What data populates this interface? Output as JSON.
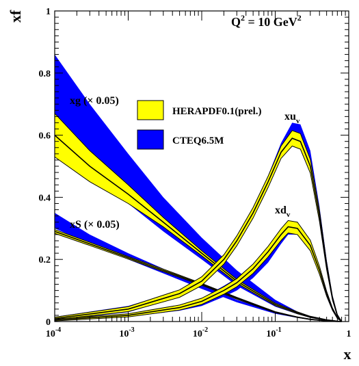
{
  "chart_data": {
    "type": "area",
    "title": "Q^2 = 10 GeV^2",
    "title_parts": {
      "base": "Q",
      "exp1": "2",
      "mid": " = 10 GeV",
      "exp2": "2"
    },
    "xlabel": "x",
    "ylabel": "xf",
    "xscale": "log",
    "xlim": [
      0.0001,
      1
    ],
    "ylim": [
      0,
      1
    ],
    "grid": false,
    "legend_position": "center",
    "x_ticks": [
      {
        "base": "10",
        "exp": "-4"
      },
      {
        "base": "10",
        "exp": "-3"
      },
      {
        "base": "10",
        "exp": "-2"
      },
      {
        "base": "10",
        "exp": "-1"
      },
      {
        "base": "1",
        "exp": ""
      }
    ],
    "y_ticks": [
      "0",
      "0.2",
      "0.4",
      "0.6",
      "0.8",
      "1"
    ],
    "legend": [
      {
        "label": "HERAPDF0.1(prel.)",
        "color": "#ffff00"
      },
      {
        "label": "CTEQ6.5M",
        "color": "#0000ff"
      }
    ],
    "annotations": {
      "xg": "xg (× 0.05)",
      "xS": "xS (× 0.05)",
      "xuv": {
        "base": "xu",
        "sub": "v"
      },
      "xdv": {
        "base": "xd",
        "sub": "v"
      }
    },
    "series": [
      {
        "name": "xg",
        "x": [
          0.0001,
          0.0003,
          0.001,
          0.003,
          0.01,
          0.03,
          0.1,
          0.2,
          0.3,
          0.5,
          0.7,
          0.8
        ],
        "hera_center": [
          0.6,
          0.5,
          0.41,
          0.32,
          0.22,
          0.13,
          0.055,
          0.028,
          0.015,
          0.005,
          0.001,
          0.0
        ],
        "hera_err": [
          0.07,
          0.05,
          0.03,
          0.015,
          0.008,
          0.006,
          0.004,
          0.003,
          0.002,
          0.001,
          0.0005,
          0.0
        ],
        "cteq_upper": [
          0.86,
          0.7,
          0.54,
          0.4,
          0.27,
          0.165,
          0.07,
          0.032,
          0.017,
          0.006,
          0.001,
          0.0
        ],
        "cteq_lower": [
          0.59,
          0.47,
          0.38,
          0.29,
          0.2,
          0.115,
          0.048,
          0.024,
          0.013,
          0.004,
          0.001,
          0.0
        ]
      },
      {
        "name": "xS",
        "x": [
          0.0001,
          0.0003,
          0.001,
          0.003,
          0.01,
          0.03,
          0.1,
          0.2,
          0.3,
          0.5,
          0.7,
          0.8
        ],
        "hera_center": [
          0.29,
          0.25,
          0.205,
          0.165,
          0.12,
          0.075,
          0.03,
          0.014,
          0.007,
          0.002,
          0.0003,
          0.0
        ],
        "hera_err": [
          0.006,
          0.005,
          0.004,
          0.004,
          0.003,
          0.003,
          0.002,
          0.001,
          0.001,
          0.0005,
          0.0002,
          0.0
        ],
        "cteq_upper": [
          0.35,
          0.28,
          0.22,
          0.17,
          0.12,
          0.07,
          0.03,
          0.015,
          0.008,
          0.002,
          0.0003,
          0.0
        ],
        "cteq_lower": [
          0.3,
          0.25,
          0.2,
          0.155,
          0.105,
          0.062,
          0.025,
          0.012,
          0.006,
          0.002,
          0.0003,
          0.0
        ]
      },
      {
        "name": "xuv",
        "x": [
          0.0001,
          0.001,
          0.005,
          0.01,
          0.02,
          0.03,
          0.05,
          0.08,
          0.12,
          0.17,
          0.22,
          0.3,
          0.4,
          0.5,
          0.6,
          0.7,
          0.8
        ],
        "hera_center": [
          0.01,
          0.04,
          0.09,
          0.13,
          0.2,
          0.26,
          0.35,
          0.45,
          0.545,
          0.59,
          0.58,
          0.5,
          0.34,
          0.18,
          0.075,
          0.02,
          0.0
        ],
        "hera_err": [
          0.004,
          0.008,
          0.012,
          0.014,
          0.015,
          0.016,
          0.017,
          0.018,
          0.02,
          0.025,
          0.025,
          0.022,
          0.018,
          0.012,
          0.006,
          0.003,
          0.0
        ],
        "cteq_upper": [
          0.015,
          0.05,
          0.1,
          0.14,
          0.21,
          0.27,
          0.36,
          0.47,
          0.575,
          0.64,
          0.635,
          0.55,
          0.37,
          0.2,
          0.085,
          0.025,
          0.0
        ],
        "cteq_lower": [
          0.005,
          0.03,
          0.08,
          0.12,
          0.19,
          0.25,
          0.34,
          0.44,
          0.53,
          0.57,
          0.56,
          0.48,
          0.33,
          0.17,
          0.07,
          0.02,
          0.0
        ]
      },
      {
        "name": "xdv",
        "x": [
          0.0001,
          0.001,
          0.005,
          0.01,
          0.02,
          0.03,
          0.05,
          0.08,
          0.12,
          0.15,
          0.2,
          0.3,
          0.4,
          0.5,
          0.6,
          0.7,
          0.8
        ],
        "hera_center": [
          0.005,
          0.02,
          0.045,
          0.065,
          0.1,
          0.125,
          0.17,
          0.225,
          0.28,
          0.305,
          0.3,
          0.245,
          0.165,
          0.09,
          0.04,
          0.012,
          0.0
        ],
        "hera_err": [
          0.003,
          0.005,
          0.008,
          0.01,
          0.012,
          0.013,
          0.015,
          0.017,
          0.019,
          0.02,
          0.02,
          0.017,
          0.013,
          0.008,
          0.004,
          0.002,
          0.0
        ],
        "cteq_upper": [
          0.006,
          0.022,
          0.05,
          0.075,
          0.115,
          0.14,
          0.185,
          0.24,
          0.295,
          0.31,
          0.3,
          0.245,
          0.165,
          0.09,
          0.04,
          0.012,
          0.0
        ],
        "cteq_lower": [
          0.004,
          0.015,
          0.035,
          0.05,
          0.08,
          0.1,
          0.14,
          0.19,
          0.25,
          0.28,
          0.28,
          0.23,
          0.155,
          0.08,
          0.035,
          0.01,
          0.0
        ]
      }
    ]
  }
}
